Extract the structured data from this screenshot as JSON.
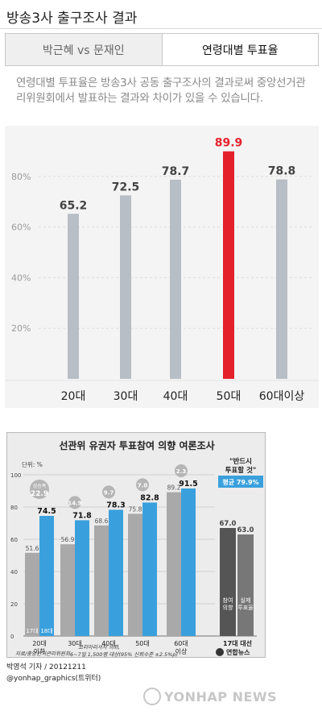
{
  "page": {
    "title": "방송3사 출구조사 결과"
  },
  "tabs": [
    {
      "label": "박근혜 vs 문재인",
      "active": false
    },
    {
      "label": "연령대별 투표율",
      "active": true
    }
  ],
  "note": "연령대별 투표율은 방송3사 공동 출구조사의 결과로써 중앙선거관리위원회에서 발표하는 결과와 차이가 있을 수 있습니다.",
  "colors": {
    "bar_default": "#b8bec6",
    "bar_highlight": "#e4212b",
    "label_highlight": "#e4212b",
    "info_gray": "#a9a9a9",
    "info_blue": "#3aa0dd",
    "info_dark": "#555555"
  },
  "chart_data": [
    {
      "type": "bar",
      "categories": [
        "20대",
        "30대",
        "40대",
        "50대",
        "60대이상"
      ],
      "values": [
        65.2,
        72.5,
        78.7,
        89.9,
        78.8
      ],
      "highlight_index": 3,
      "ylim": [
        0,
        100
      ],
      "yticks": [
        "20%",
        "40%",
        "60%",
        "80%"
      ],
      "grid": true
    },
    {
      "type": "bar",
      "title": "선관위 유권자 투표참여 의향 여론조사",
      "unit_label": "단위: %",
      "categories": [
        "20대 이하",
        "30대",
        "40대",
        "50대",
        "60대 이상"
      ],
      "yticks": [
        "0",
        "20",
        "40",
        "60",
        "80",
        "100"
      ],
      "ylim": [
        0,
        100
      ],
      "series": [
        {
          "name": "17대",
          "values": [
            51.6,
            56.9,
            68.6,
            75.8,
            89.2
          ]
        },
        {
          "name": "18대",
          "values": [
            74.5,
            71.8,
            78.3,
            82.8,
            91.5
          ]
        }
      ],
      "increase_label": "상승폭",
      "increase": [
        "22.9",
        "14.9",
        "9.7",
        "7.0",
        "2.3"
      ],
      "election17": {
        "label": "17대 대선",
        "values": [
          67.0,
          63.0
        ],
        "bar_labels": [
          "참여 의향",
          "실제 투표율"
        ]
      },
      "callout": {
        "text": "\"반드시 투표할 것\"",
        "avg": "평균 79.9%"
      },
      "source": "지료/중앙선거관리위원회",
      "method": "코리아리서치 의뢰, 6~7일 1,500명 대상(95% 신뢰수준 ±2.5%p)",
      "logo": "연합뉴스"
    }
  ],
  "credits": {
    "author": "박영석 기자 / 20121211",
    "twitter": "@yonhap_graphics(트위터)"
  },
  "watermark": "YONHAP NEWS"
}
